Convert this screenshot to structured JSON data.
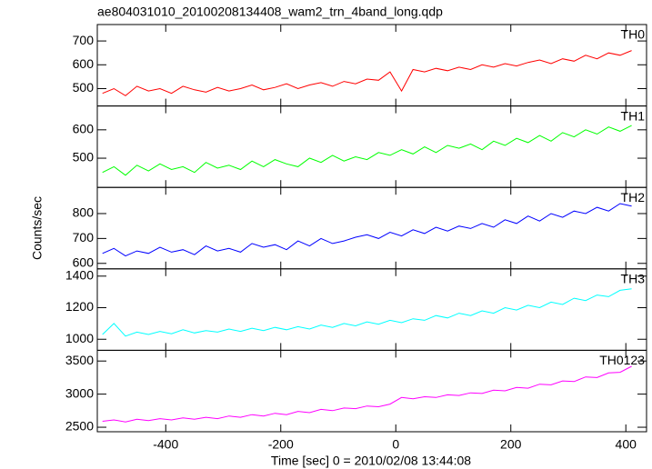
{
  "chart_data": {
    "type": "line",
    "title": "ae804031010_20100208134408_wam2_trn_4band_long.qdp",
    "xlabel": "Time [sec] 0 = 2010/02/08 13:44:08",
    "ylabel": "Counts/sec",
    "x": [
      -510,
      -490,
      -470,
      -450,
      -430,
      -410,
      -390,
      -370,
      -350,
      -330,
      -310,
      -290,
      -270,
      -250,
      -230,
      -210,
      -190,
      -170,
      -150,
      -130,
      -110,
      -90,
      -70,
      -50,
      -30,
      -10,
      10,
      30,
      50,
      70,
      90,
      110,
      130,
      150,
      170,
      190,
      210,
      230,
      250,
      270,
      290,
      310,
      330,
      350,
      370,
      390,
      410
    ],
    "xlim": [
      -519,
      436
    ],
    "xticks": [
      -400,
      -200,
      0,
      200,
      400
    ],
    "series": [
      {
        "name": "TH0",
        "color": "#ff0000",
        "ylim": [
          427,
          769
        ],
        "yticks": [
          500,
          600,
          700
        ],
        "values": [
          480,
          500,
          470,
          510,
          490,
          500,
          480,
          510,
          495,
          485,
          505,
          490,
          500,
          515,
          495,
          505,
          520,
          500,
          515,
          525,
          510,
          530,
          520,
          540,
          535,
          570,
          490,
          580,
          570,
          585,
          575,
          590,
          580,
          600,
          590,
          605,
          595,
          610,
          620,
          605,
          625,
          615,
          640,
          625,
          650,
          640,
          660
        ]
      },
      {
        "name": "TH1",
        "color": "#00ff00",
        "ylim": [
          397,
          684
        ],
        "yticks": [
          500,
          600
        ],
        "values": [
          450,
          470,
          440,
          475,
          455,
          480,
          460,
          470,
          450,
          485,
          465,
          475,
          460,
          490,
          470,
          495,
          480,
          470,
          500,
          485,
          510,
          490,
          505,
          495,
          520,
          510,
          530,
          515,
          540,
          520,
          545,
          535,
          550,
          530,
          560,
          545,
          570,
          555,
          580,
          560,
          590,
          575,
          600,
          585,
          610,
          595,
          615
        ]
      },
      {
        "name": "TH2",
        "color": "#0000ff",
        "ylim": [
          578,
          905
        ],
        "yticks": [
          600,
          700,
          800
        ],
        "values": [
          640,
          660,
          630,
          650,
          640,
          665,
          645,
          655,
          635,
          670,
          650,
          660,
          645,
          680,
          665,
          675,
          655,
          690,
          670,
          700,
          680,
          690,
          705,
          715,
          700,
          725,
          710,
          735,
          720,
          745,
          730,
          750,
          740,
          760,
          745,
          775,
          760,
          790,
          770,
          800,
          785,
          810,
          800,
          825,
          810,
          840,
          830
        ]
      },
      {
        "name": "TH3",
        "color": "#00ffff",
        "ylim": [
          930,
          1446
        ],
        "yticks": [
          1000,
          1200,
          1400
        ],
        "values": [
          1030,
          1100,
          1020,
          1045,
          1030,
          1050,
          1035,
          1060,
          1040,
          1055,
          1045,
          1065,
          1050,
          1070,
          1055,
          1075,
          1060,
          1080,
          1065,
          1090,
          1075,
          1100,
          1085,
          1110,
          1095,
          1120,
          1105,
          1130,
          1120,
          1150,
          1135,
          1165,
          1150,
          1180,
          1165,
          1200,
          1185,
          1215,
          1200,
          1235,
          1220,
          1260,
          1245,
          1280,
          1270,
          1310,
          1320
        ]
      },
      {
        "name": "TH0123",
        "color": "#ff00ff",
        "ylim": [
          2432,
          3662
        ],
        "yticks": [
          2500,
          3000,
          3500
        ],
        "values": [
          2590,
          2610,
          2580,
          2620,
          2600,
          2630,
          2610,
          2640,
          2620,
          2650,
          2630,
          2670,
          2650,
          2690,
          2670,
          2710,
          2690,
          2740,
          2720,
          2770,
          2750,
          2790,
          2780,
          2820,
          2810,
          2850,
          2950,
          2930,
          2960,
          2950,
          2990,
          2980,
          3020,
          3010,
          3060,
          3050,
          3100,
          3090,
          3150,
          3140,
          3200,
          3190,
          3260,
          3250,
          3320,
          3330,
          3420
        ]
      }
    ]
  }
}
